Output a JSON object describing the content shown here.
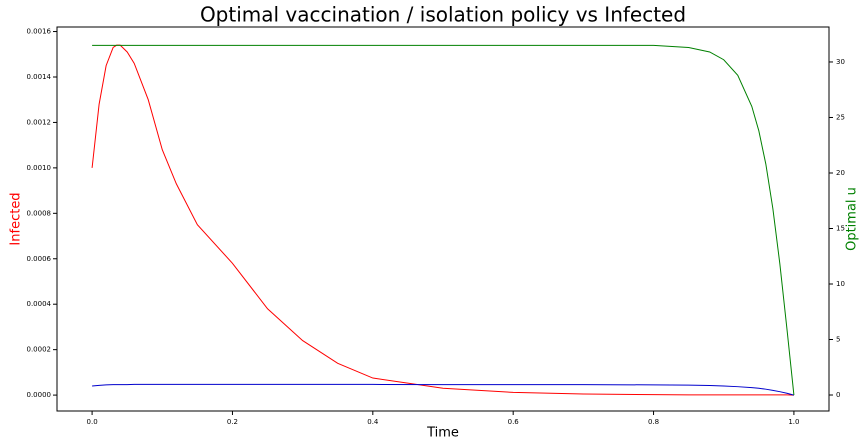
{
  "chart_data": {
    "type": "line",
    "title": "Optimal vaccination / isolation policy vs Infected",
    "xlabel": "Time",
    "ylabel": "Infected",
    "y2label": "Optimal u",
    "ylabel_color": "#ff0000",
    "y2label_color": "#008000",
    "x": [
      0,
      0.01,
      0.02,
      0.03,
      0.035,
      0.04,
      0.05,
      0.06,
      0.08,
      0.1,
      0.12,
      0.15,
      0.2,
      0.25,
      0.3,
      0.35,
      0.4,
      0.5,
      0.6,
      0.7,
      0.8,
      0.85,
      0.88,
      0.9,
      0.92,
      0.94,
      0.95,
      0.96,
      0.97,
      0.98,
      0.99,
      1.0
    ],
    "series": [
      {
        "color": "#ff0000",
        "axis": "y",
        "values": [
          0.001,
          0.00128,
          0.00145,
          0.00153,
          0.00154,
          0.00154,
          0.00151,
          0.00146,
          0.0013,
          0.00108,
          0.00093,
          0.00075,
          0.00058,
          0.00038,
          0.00024,
          0.00014,
          7.5e-05,
          3e-05,
          1.2e-05,
          5e-06,
          2e-06,
          1e-06,
          1e-06,
          1e-06,
          1e-06,
          1e-06,
          1e-06,
          1e-06,
          1e-06,
          1e-06,
          1e-06,
          0
        ]
      },
      {
        "color": "#0000cc",
        "axis": "y",
        "values": [
          4e-05,
          4.3e-05,
          4.5e-05,
          4.6e-05,
          4.6e-05,
          4.6e-05,
          4.6e-05,
          4.7e-05,
          4.7e-05,
          4.7e-05,
          4.7e-05,
          4.7e-05,
          4.7e-05,
          4.7e-05,
          4.7e-05,
          4.7e-05,
          4.7e-05,
          4.6e-05,
          4.6e-05,
          4.6e-05,
          4.5e-05,
          4.4e-05,
          4.2e-05,
          4e-05,
          3.7e-05,
          3.3e-05,
          3e-05,
          2.6e-05,
          2.1e-05,
          1.5e-05,
          8e-06,
          0
        ]
      },
      {
        "color": "#008000",
        "axis": "y2",
        "values": [
          31.5,
          31.5,
          31.5,
          31.5,
          31.5,
          31.5,
          31.5,
          31.5,
          31.5,
          31.5,
          31.5,
          31.5,
          31.5,
          31.5,
          31.5,
          31.5,
          31.5,
          31.5,
          31.5,
          31.5,
          31.5,
          31.3,
          30.9,
          30.2,
          28.8,
          26.0,
          23.8,
          20.8,
          16.8,
          11.8,
          6.0,
          0
        ]
      }
    ],
    "xlim": [
      -0.05,
      1.05
    ],
    "xticks": [
      {
        "value": 0,
        "label": "0.0"
      },
      {
        "value": 0.2,
        "label": "0.2"
      },
      {
        "value": 0.4,
        "label": "0.4"
      },
      {
        "value": 0.6,
        "label": "0.6"
      },
      {
        "value": 0.8,
        "label": "0.8"
      },
      {
        "value": 1.0,
        "label": "1.0"
      }
    ],
    "ylim": [
      -7e-05,
      0.00162
    ],
    "yticks": [
      {
        "value": 0,
        "label": "0.0000"
      },
      {
        "value": 0.0002,
        "label": "0.0002"
      },
      {
        "value": 0.0004,
        "label": "0.0004"
      },
      {
        "value": 0.0006,
        "label": "0.0006"
      },
      {
        "value": 0.0008,
        "label": "0.0008"
      },
      {
        "value": 0.001,
        "label": "0.0010"
      },
      {
        "value": 0.0012,
        "label": "0.0012"
      },
      {
        "value": 0.0014,
        "label": "0.0014"
      },
      {
        "value": 0.0016,
        "label": "0.0016"
      }
    ],
    "y2lim": [
      -1.44,
      33.15
    ],
    "y2ticks": [
      0,
      5,
      10,
      15,
      20,
      25,
      30
    ]
  }
}
